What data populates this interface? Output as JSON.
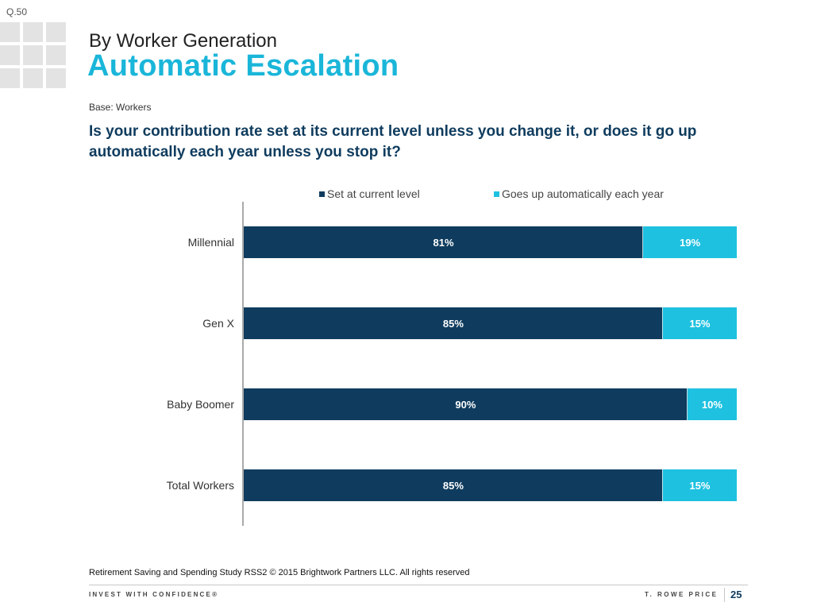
{
  "question_code": "Q.50",
  "header": {
    "subtitle": "By Worker Generation",
    "title": "Automatic Escalation",
    "base": "Base: Workers",
    "question": "Is your contribution rate set at its current level unless you change it, or does it go up automatically each year unless you stop it?"
  },
  "colors": {
    "series1": "#0f3c5e",
    "series2": "#1ec1e0",
    "accent": "#1ab6d9"
  },
  "chart_data": {
    "type": "bar",
    "orientation": "horizontal",
    "stacked": true,
    "title": "",
    "xlabel": "",
    "ylabel": "",
    "xlim": [
      0,
      100
    ],
    "legend_position": "top",
    "categories": [
      "Millennial",
      "Gen X",
      "Baby Boomer",
      "Total Workers"
    ],
    "series": [
      {
        "name": "Set at current level",
        "values": [
          81,
          85,
          90,
          85
        ],
        "labels": [
          "81%",
          "85%",
          "90%",
          "85%"
        ]
      },
      {
        "name": "Goes up automatically each year",
        "values": [
          19,
          15,
          10,
          15
        ],
        "labels": [
          "19%",
          "15%",
          "10%",
          "15%"
        ]
      }
    ]
  },
  "footer": {
    "source": "Retirement Saving and Spending Study RSS2 © 2015 Brightwork Partners LLC. All rights reserved",
    "tagline": "INVEST WITH CONFIDENCE®",
    "brand": "T. ROWE PRICE",
    "page_number": "25"
  }
}
